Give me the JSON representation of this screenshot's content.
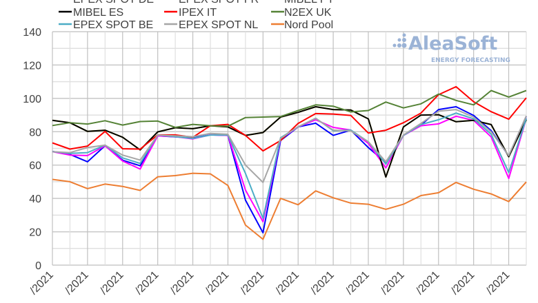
{
  "watermark": {
    "brand": "AleaSoft",
    "tagline": "ENERGY FORECASTING"
  },
  "chart_data": {
    "type": "line",
    "title": "",
    "xlabel": "",
    "ylabel": "",
    "ylim": [
      0,
      140
    ],
    "yticks": [
      "0",
      "20",
      "40",
      "60",
      "80",
      "100",
      "120",
      "140"
    ],
    "xtick_labels": [
      "/2021",
      "/2021",
      "/2021",
      "/2021",
      "/2021",
      "/2021",
      "/2021",
      "/2021",
      "/2021",
      "/2021",
      "/2021",
      "/2021",
      "/2021",
      "/2021"
    ],
    "grid": true,
    "legend_position": "top",
    "series": [
      {
        "name": "EPEX SPOT DE",
        "color": "#0000ff",
        "values": [
          68.2,
          66.4,
          62,
          71.6,
          62.9,
          59.6,
          77.5,
          76.9,
          76.3,
          78.1,
          77.8,
          39,
          19.4,
          74.7,
          82.9,
          85.1,
          77.8,
          80.9,
          70.5,
          61.6,
          77.8,
          84,
          93.3,
          95,
          89.8,
          80.6,
          65.4,
          89.3
        ]
      },
      {
        "name": "EPEX SPOT FR",
        "color": "#ff00ff",
        "values": [
          68,
          66,
          65.7,
          71.6,
          62.4,
          57.6,
          77.5,
          77,
          75.7,
          78.1,
          77.8,
          45,
          26,
          75.7,
          82.9,
          87.2,
          82.6,
          81,
          73,
          58.3,
          77.8,
          83.6,
          84.7,
          89.3,
          86.8,
          76.9,
          52,
          88
        ]
      },
      {
        "name": "MIBEL PT",
        "color": "#e6d800",
        "values": [
          86.8,
          85.4,
          80.2,
          80.9,
          76.7,
          69.1,
          79.9,
          82.4,
          81.8,
          83.6,
          82.9,
          77.8,
          79.5,
          88.8,
          91.6,
          95,
          93.3,
          93,
          87.7,
          52.8,
          82.9,
          90,
          90.2,
          86,
          86.8,
          84.3,
          65,
          87.2
        ]
      },
      {
        "name": "MIBEL ES",
        "color": "#000000",
        "values": [
          86.8,
          85.4,
          80.2,
          80.9,
          76.7,
          69.1,
          79.9,
          82.4,
          81.8,
          83.6,
          82.9,
          77.8,
          79.5,
          88.8,
          91.6,
          95,
          93.3,
          93,
          87.7,
          52.8,
          82.9,
          90,
          90.2,
          86,
          86.8,
          84.3,
          65,
          87.2
        ]
      },
      {
        "name": "IPEX IT",
        "color": "#ff0000",
        "values": [
          73.3,
          69.6,
          71.4,
          80.2,
          69.8,
          69.6,
          78.1,
          78.1,
          76.7,
          83.6,
          84.4,
          77.8,
          68.5,
          74.7,
          85,
          90.9,
          90.6,
          89.8,
          79.2,
          80.9,
          85.4,
          91.2,
          102.2,
          107,
          98,
          92,
          87.5,
          100.3
        ]
      },
      {
        "name": "N2EX UK",
        "color": "#548235",
        "values": [
          83.7,
          85.4,
          84.6,
          86.6,
          84,
          86.1,
          86.4,
          82.6,
          84.4,
          83.6,
          83.3,
          88.5,
          88.8,
          89.1,
          92.7,
          96.1,
          95.3,
          91.9,
          92.7,
          97.8,
          94.3,
          96.7,
          102.6,
          98.8,
          96.1,
          104.7,
          100.8,
          104.7
        ]
      },
      {
        "name": "EPEX SPOT BE",
        "color": "#4bacc6",
        "values": [
          68,
          67,
          67.5,
          72,
          64.3,
          61,
          78,
          77,
          76,
          78,
          78,
          55,
          28,
          76.4,
          82.9,
          88.1,
          80.6,
          81,
          74,
          60.6,
          77.8,
          84.3,
          87.2,
          91.2,
          87.7,
          78.5,
          55.5,
          88
        ]
      },
      {
        "name": "EPEX SPOT NL",
        "color": "#a6a6a6",
        "values": [
          68,
          67.5,
          70.5,
          72,
          66,
          63,
          78,
          77.5,
          77,
          79,
          78.5,
          60,
          49.6,
          76,
          83,
          88,
          81,
          80.5,
          74,
          62,
          78,
          85,
          92.3,
          93.3,
          88.8,
          79.9,
          65.7,
          89.5
        ]
      },
      {
        "name": "Nord Pool",
        "color": "#ed7d31",
        "values": [
          51.4,
          50,
          45.9,
          48.6,
          47.2,
          44.8,
          53,
          53.7,
          55.1,
          54.7,
          47.8,
          24,
          15.5,
          40,
          36.2,
          44.5,
          40.4,
          37.2,
          36.5,
          33.5,
          36.5,
          41.7,
          43.4,
          49.6,
          45.5,
          42.7,
          38.1,
          49.9
        ]
      }
    ]
  }
}
